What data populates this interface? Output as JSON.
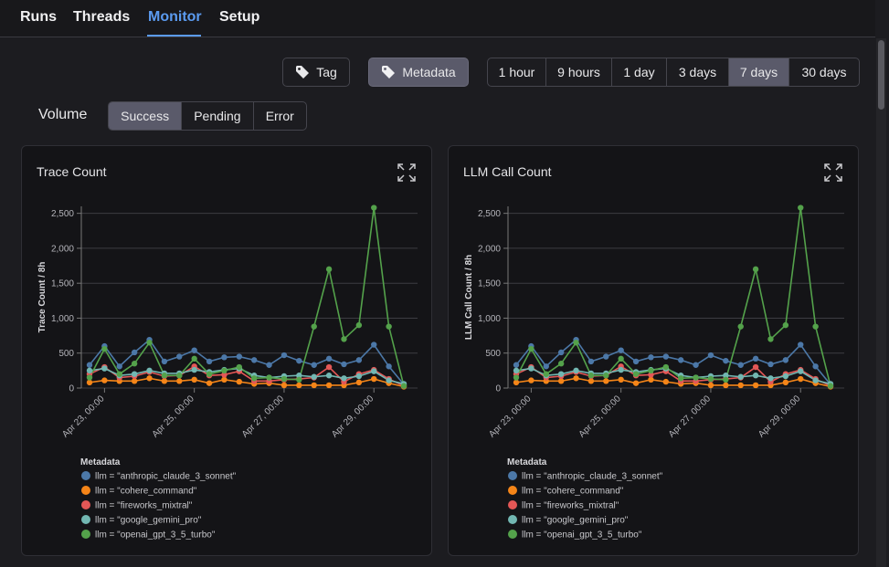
{
  "nav": {
    "tabs": [
      "Runs",
      "Threads",
      "Monitor",
      "Setup"
    ]
  },
  "group_by": [
    "Tag",
    "Metadata"
  ],
  "time_ranges": [
    "1 hour",
    "9 hours",
    "1 day",
    "3 days",
    "7 days",
    "30 days"
  ],
  "volume": {
    "label": "Volume",
    "options": [
      "Success",
      "Pending",
      "Error"
    ]
  },
  "chart_data": [
    {
      "type": "line",
      "title": "Trace Count",
      "y_label": "Trace Count / 8h",
      "legend_title": "Metadata",
      "x": [
        "Apr 22, 16:00",
        "Apr 23, 00:00",
        "Apr 23, 08:00",
        "Apr 23, 16:00",
        "Apr 24, 00:00",
        "Apr 24, 08:00",
        "Apr 24, 16:00",
        "Apr 25, 00:00",
        "Apr 25, 08:00",
        "Apr 25, 16:00",
        "Apr 26, 00:00",
        "Apr 26, 08:00",
        "Apr 26, 16:00",
        "Apr 27, 00:00",
        "Apr 27, 08:00",
        "Apr 27, 16:00",
        "Apr 28, 00:00",
        "Apr 28, 08:00",
        "Apr 28, 16:00",
        "Apr 29, 00:00",
        "Apr 29, 08:00",
        "Apr 29, 16:00"
      ],
      "xticks": [
        "Apr 23, 00:00",
        "Apr 25, 00:00",
        "Apr 27, 00:00",
        "Apr 29, 00:00"
      ],
      "ylim": [
        0,
        2600
      ],
      "yticks": [
        0,
        500,
        {
          "value": 1000,
          "label": "1,000"
        },
        {
          "value": 1500,
          "label": "1,500"
        },
        {
          "value": 2000,
          "label": "2,000"
        },
        {
          "value": 2500,
          "label": "2,500"
        }
      ],
      "grid": true,
      "series": [
        {
          "name": "llm = \"anthropic_claude_3_sonnet\"",
          "color": "#4c78a8",
          "values": [
            330,
            600,
            310,
            510,
            690,
            380,
            450,
            540,
            380,
            440,
            450,
            400,
            330,
            470,
            390,
            330,
            420,
            340,
            400,
            620,
            310,
            50
          ]
        },
        {
          "name": "llm = \"cohere_command\"",
          "color": "#f58518",
          "values": [
            80,
            110,
            100,
            100,
            140,
            100,
            100,
            120,
            70,
            120,
            90,
            60,
            70,
            40,
            40,
            40,
            40,
            40,
            80,
            130,
            70,
            20
          ]
        },
        {
          "name": "llm = \"fireworks_mixtral\"",
          "color": "#e45756",
          "values": [
            200,
            300,
            150,
            170,
            230,
            170,
            180,
            310,
            180,
            190,
            240,
            100,
            100,
            120,
            130,
            150,
            300,
            90,
            200,
            260,
            130,
            30
          ]
        },
        {
          "name": "llm = \"google_gemini_pro\"",
          "color": "#72b7b2",
          "values": [
            250,
            280,
            180,
            200,
            250,
            210,
            210,
            260,
            230,
            260,
            280,
            180,
            150,
            170,
            180,
            160,
            180,
            140,
            170,
            240,
            110,
            60
          ]
        },
        {
          "name": "llm = \"openai_gpt_3_5_turbo\"",
          "color": "#54a24b",
          "values": [
            150,
            560,
            200,
            350,
            650,
            180,
            180,
            420,
            200,
            250,
            300,
            140,
            150,
            130,
            120,
            880,
            1700,
            700,
            900,
            2580,
            880,
            30
          ]
        }
      ]
    },
    {
      "type": "line",
      "title": "LLM Call Count",
      "y_label": "LLM Call Count / 8h",
      "legend_title": "Metadata",
      "x": [
        "Apr 22, 16:00",
        "Apr 23, 00:00",
        "Apr 23, 08:00",
        "Apr 23, 16:00",
        "Apr 24, 00:00",
        "Apr 24, 08:00",
        "Apr 24, 16:00",
        "Apr 25, 00:00",
        "Apr 25, 08:00",
        "Apr 25, 16:00",
        "Apr 26, 00:00",
        "Apr 26, 08:00",
        "Apr 26, 16:00",
        "Apr 27, 00:00",
        "Apr 27, 08:00",
        "Apr 27, 16:00",
        "Apr 28, 00:00",
        "Apr 28, 08:00",
        "Apr 28, 16:00",
        "Apr 29, 00:00",
        "Apr 29, 08:00",
        "Apr 29, 16:00"
      ],
      "xticks": [
        "Apr 23, 00:00",
        "Apr 25, 00:00",
        "Apr 27, 00:00",
        "Apr 29, 00:00"
      ],
      "ylim": [
        0,
        2600
      ],
      "yticks": [
        0,
        500,
        {
          "value": 1000,
          "label": "1,000"
        },
        {
          "value": 1500,
          "label": "1,500"
        },
        {
          "value": 2000,
          "label": "2,000"
        },
        {
          "value": 2500,
          "label": "2,500"
        }
      ],
      "grid": true,
      "series": [
        {
          "name": "llm = \"anthropic_claude_3_sonnet\"",
          "color": "#4c78a8",
          "values": [
            330,
            600,
            310,
            510,
            690,
            380,
            450,
            540,
            380,
            440,
            450,
            400,
            330,
            470,
            390,
            330,
            420,
            340,
            400,
            620,
            310,
            50
          ]
        },
        {
          "name": "llm = \"cohere_command\"",
          "color": "#f58518",
          "values": [
            80,
            110,
            100,
            100,
            140,
            100,
            100,
            120,
            70,
            120,
            90,
            60,
            70,
            40,
            40,
            40,
            40,
            40,
            80,
            130,
            70,
            20
          ]
        },
        {
          "name": "llm = \"fireworks_mixtral\"",
          "color": "#e45756",
          "values": [
            200,
            300,
            150,
            170,
            230,
            170,
            180,
            310,
            180,
            190,
            240,
            100,
            100,
            120,
            130,
            150,
            300,
            90,
            200,
            260,
            130,
            30
          ]
        },
        {
          "name": "llm = \"google_gemini_pro\"",
          "color": "#72b7b2",
          "values": [
            250,
            280,
            180,
            200,
            250,
            210,
            210,
            260,
            230,
            260,
            280,
            180,
            150,
            170,
            180,
            160,
            180,
            140,
            170,
            240,
            110,
            60
          ]
        },
        {
          "name": "llm = \"openai_gpt_3_5_turbo\"",
          "color": "#54a24b",
          "values": [
            150,
            560,
            200,
            350,
            650,
            180,
            180,
            420,
            200,
            250,
            300,
            140,
            150,
            130,
            120,
            880,
            1700,
            700,
            900,
            2580,
            880,
            30
          ]
        }
      ]
    }
  ]
}
